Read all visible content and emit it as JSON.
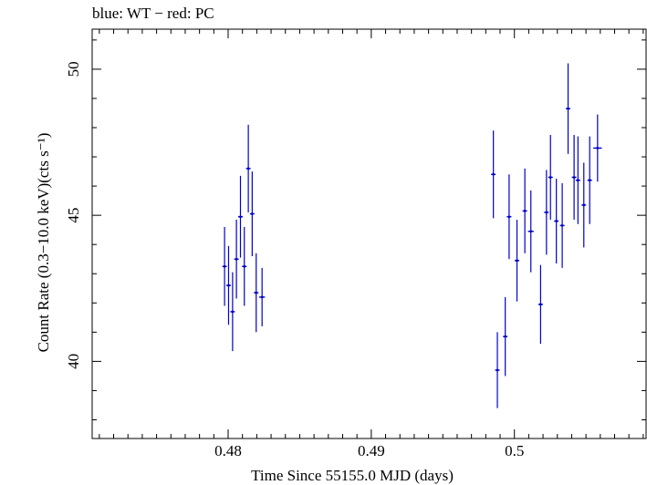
{
  "chart_data": {
    "type": "scatter",
    "title": "blue: WT − red: PC",
    "xlabel": "Time Since 55155.0 MJD (days)",
    "ylabel": "Count Rate (0.3−10.0 keV)(cts s⁻¹)",
    "xlim": [
      0.4705,
      0.5092
    ],
    "ylim": [
      37.36,
      51.37
    ],
    "x_ticks": [
      0.48,
      0.49,
      0.5
    ],
    "x_tick_labels": [
      "0.48",
      "0.49",
      "0.5"
    ],
    "y_ticks": [
      40,
      45,
      50
    ],
    "y_tick_labels": [
      "40",
      "45",
      "50"
    ],
    "grid": false,
    "series": [
      {
        "color": "#0000cc",
        "marker": "error-bar",
        "points": [
          {
            "x": 0.47975,
            "y": 43.25,
            "yerr": 1.35,
            "xerr": 0.0001
          },
          {
            "x": 0.48003,
            "y": 42.6,
            "yerr": 1.35,
            "xerr": 0.0001
          },
          {
            "x": 0.48031,
            "y": 41.7,
            "yerr": 1.35,
            "xerr": 0.0001
          },
          {
            "x": 0.48058,
            "y": 43.5,
            "yerr": 1.35,
            "xerr": 0.0001
          },
          {
            "x": 0.48086,
            "y": 44.95,
            "yerr": 1.4,
            "xerr": 0.0001
          },
          {
            "x": 0.48113,
            "y": 43.25,
            "yerr": 1.35,
            "xerr": 0.0001
          },
          {
            "x": 0.48141,
            "y": 46.6,
            "yerr": 1.5,
            "xerr": 0.0001
          },
          {
            "x": 0.48168,
            "y": 45.05,
            "yerr": 1.45,
            "xerr": 0.0001
          },
          {
            "x": 0.48196,
            "y": 42.35,
            "yerr": 1.35,
            "xerr": 0.0001
          },
          {
            "x": 0.48237,
            "y": 42.2,
            "yerr": 1.0,
            "xerr": 0.0002
          },
          {
            "x": 0.49853,
            "y": 46.4,
            "yerr": 1.5,
            "xerr": 0.0001
          },
          {
            "x": 0.49881,
            "y": 39.7,
            "yerr": 1.3,
            "xerr": 0.0001
          },
          {
            "x": 0.49936,
            "y": 40.85,
            "yerr": 1.35,
            "xerr": 0.0001
          },
          {
            "x": 0.49963,
            "y": 44.95,
            "yerr": 1.45,
            "xerr": 0.0001
          },
          {
            "x": 0.50018,
            "y": 43.45,
            "yerr": 1.4,
            "xerr": 0.0001
          },
          {
            "x": 0.50073,
            "y": 45.15,
            "yerr": 1.45,
            "xerr": 0.0001
          },
          {
            "x": 0.50115,
            "y": 44.45,
            "yerr": 1.4,
            "xerr": 0.0002
          },
          {
            "x": 0.50183,
            "y": 41.95,
            "yerr": 1.35,
            "xerr": 0.0001
          },
          {
            "x": 0.50224,
            "y": 45.1,
            "yerr": 1.45,
            "xerr": 0.0001
          },
          {
            "x": 0.50252,
            "y": 46.3,
            "yerr": 1.45,
            "xerr": 0.0001
          },
          {
            "x": 0.50293,
            "y": 44.8,
            "yerr": 1.45,
            "xerr": 0.0001
          },
          {
            "x": 0.50334,
            "y": 44.65,
            "yerr": 1.45,
            "xerr": 0.0001
          },
          {
            "x": 0.50375,
            "y": 48.65,
            "yerr": 1.55,
            "xerr": 0.0001
          },
          {
            "x": 0.50417,
            "y": 46.3,
            "yerr": 1.45,
            "xerr": 0.0001
          },
          {
            "x": 0.50444,
            "y": 46.2,
            "yerr": 1.5,
            "xerr": 0.0001
          },
          {
            "x": 0.50485,
            "y": 45.35,
            "yerr": 1.45,
            "xerr": 0.0001
          },
          {
            "x": 0.50526,
            "y": 46.2,
            "yerr": 1.5,
            "xerr": 0.0001
          },
          {
            "x": 0.50581,
            "y": 47.3,
            "yerr": 1.15,
            "xerr": 0.0003
          }
        ]
      }
    ]
  }
}
